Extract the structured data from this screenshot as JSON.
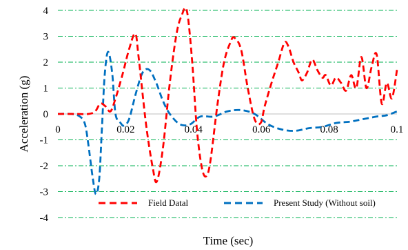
{
  "chart_data": {
    "type": "line",
    "title": "",
    "xlabel": "Time (sec)",
    "ylabel": "Acceleration (g)",
    "xlim": [
      0,
      0.1
    ],
    "ylim": [
      -4,
      4
    ],
    "xticks": [
      0,
      0.02,
      0.04,
      0.06,
      0.08,
      0.1
    ],
    "xtick_labels": [
      "0",
      "0.02",
      "0.04",
      "0.06",
      "0.08",
      "0.1"
    ],
    "yticks": [
      -4,
      -3,
      -2,
      -1,
      0,
      1,
      2,
      3,
      4
    ],
    "ytick_labels": [
      "-4",
      "-3",
      "-2",
      "-1",
      "0",
      "1",
      "2",
      "3",
      "4"
    ],
    "grid": true,
    "legend_position": "bottom",
    "series": [
      {
        "name": "Field Datal",
        "color": "#ff0000",
        "dash": "dashed",
        "x": [
          0,
          0.005,
          0.009,
          0.011,
          0.0125,
          0.014,
          0.0155,
          0.017,
          0.019,
          0.021,
          0.0228,
          0.0238,
          0.026,
          0.028,
          0.0292,
          0.031,
          0.033,
          0.035,
          0.0365,
          0.038,
          0.0395,
          0.041,
          0.0425,
          0.0438,
          0.045,
          0.047,
          0.049,
          0.051,
          0.052,
          0.054,
          0.056,
          0.058,
          0.0598,
          0.061,
          0.063,
          0.065,
          0.0668,
          0.068,
          0.0695,
          0.071,
          0.072,
          0.0735,
          0.075,
          0.0765,
          0.078,
          0.079,
          0.0805,
          0.082,
          0.0835,
          0.085,
          0.0865,
          0.088,
          0.0895,
          0.091,
          0.0925,
          0.094,
          0.0955,
          0.097,
          0.0985,
          0.1
        ],
        "y": [
          0,
          0,
          0,
          0.1,
          0.4,
          0.3,
          0.1,
          0.6,
          1.5,
          2.5,
          3.1,
          2.2,
          -0.4,
          -2.1,
          -2.6,
          -1.3,
          1.2,
          3.1,
          3.8,
          4.0,
          2.2,
          -0.6,
          -2.1,
          -2.4,
          -1.8,
          0.3,
          2.0,
          2.8,
          2.95,
          2.5,
          1.0,
          -0.2,
          -0.35,
          0.3,
          1.2,
          2.0,
          2.75,
          2.6,
          2.0,
          1.6,
          1.3,
          1.6,
          2.1,
          1.7,
          1.4,
          1.5,
          1.1,
          1.4,
          1.2,
          0.9,
          1.5,
          1.0,
          2.2,
          1.0,
          1.8,
          2.3,
          0.4,
          1.2,
          0.6,
          1.7
        ]
      },
      {
        "name": "Present Study (Without soil)",
        "color": "#0070c0",
        "dash": "dashed",
        "x": [
          0,
          0.004,
          0.0065,
          0.008,
          0.009,
          0.0102,
          0.0112,
          0.0122,
          0.013,
          0.0138,
          0.0148,
          0.016,
          0.017,
          0.0185,
          0.0195,
          0.021,
          0.023,
          0.025,
          0.027,
          0.029,
          0.031,
          0.033,
          0.036,
          0.039,
          0.042,
          0.046,
          0.05,
          0.054,
          0.058,
          0.062,
          0.066,
          0.07,
          0.074,
          0.078,
          0.082,
          0.086,
          0.09,
          0.094,
          0.097,
          0.1
        ],
        "y": [
          0,
          0,
          -0.1,
          -0.4,
          -1.2,
          -2.4,
          -3.1,
          -2.5,
          -0.5,
          1.5,
          2.4,
          1.6,
          0.0,
          -0.35,
          -0.45,
          -0.2,
          0.8,
          1.6,
          1.7,
          1.2,
          0.5,
          0.0,
          -0.4,
          -0.4,
          -0.1,
          -0.1,
          0.1,
          0.15,
          0.0,
          -0.4,
          -0.6,
          -0.65,
          -0.55,
          -0.5,
          -0.35,
          -0.3,
          -0.2,
          -0.1,
          -0.05,
          0.1
        ]
      }
    ]
  }
}
